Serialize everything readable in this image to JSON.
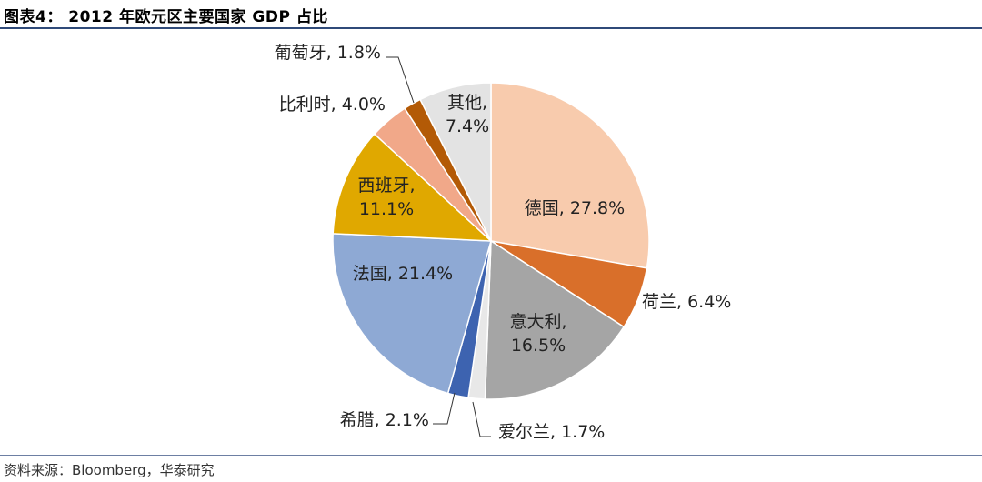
{
  "header": {
    "title": "图表4： 2012 年欧元区主要国家 GDP 占比"
  },
  "footer": {
    "source": "资料来源：Bloomberg，华泰研究"
  },
  "chart_data": {
    "type": "pie",
    "title": "2012 年欧元区主要国家 GDP 占比",
    "start_angle_deg": 0,
    "direction": "clockwise",
    "slices": [
      {
        "name": "德国",
        "value": 27.8,
        "label": "27.8%",
        "color": "#f8cbad"
      },
      {
        "name": "荷兰",
        "value": 6.4,
        "label": "6.4%",
        "color": "#d96f2a"
      },
      {
        "name": "意大利",
        "value": 16.5,
        "label": "16.5%",
        "color": "#a5a5a5"
      },
      {
        "name": "爱尔兰",
        "value": 1.7,
        "label": "1.7%",
        "color": "#e8e8e8"
      },
      {
        "name": "希腊",
        "value": 2.1,
        "label": "2.1%",
        "color": "#3d63b0"
      },
      {
        "name": "法国",
        "value": 21.4,
        "label": "21.4%",
        "color": "#8ea9d4"
      },
      {
        "name": "西班牙",
        "value": 11.1,
        "label": "11.1%",
        "color": "#e0a800"
      },
      {
        "name": "比利时",
        "value": 4.0,
        "label": "4.0%",
        "color": "#f1a889"
      },
      {
        "name": "葡萄牙",
        "value": 1.8,
        "label": "1.8%",
        "color": "#b35a06"
      },
      {
        "name": "其他",
        "value": 7.4,
        "label": "7.4%",
        "color": "#e3e3e3"
      }
    ]
  }
}
